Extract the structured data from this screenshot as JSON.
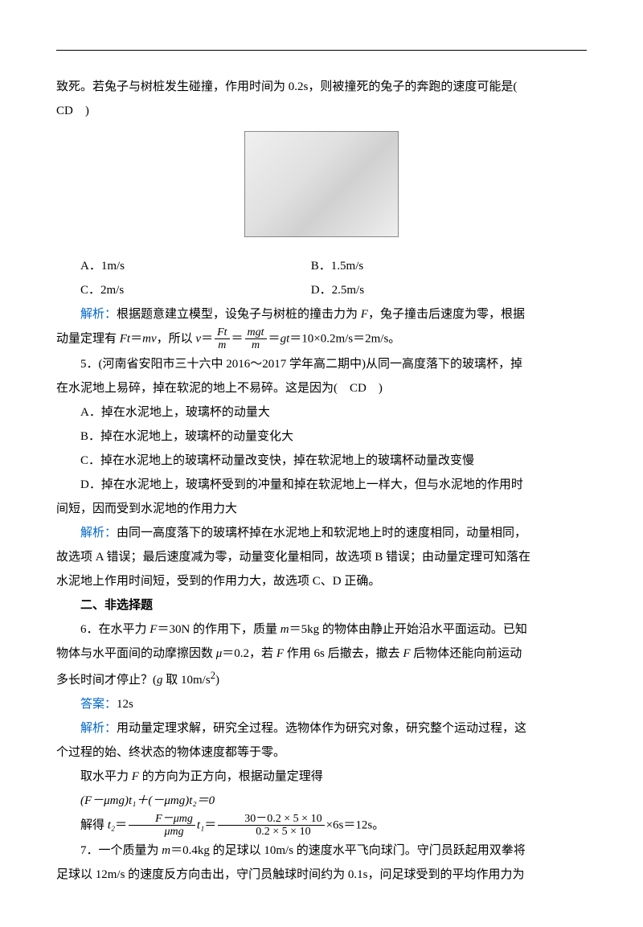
{
  "intro": {
    "line1": "致死。若兔子与树桩发生碰撞，作用时间为 0.2s，则被撞死的兔子的奔跑的速度可能是(",
    "line2": "CD　)"
  },
  "q4_choices": {
    "a": "A．1m/s",
    "b": "B．1.5m/s",
    "c": "C．2m/s",
    "d": "D．2.5m/s"
  },
  "q4_explain": {
    "label": "解析：",
    "part1": "根据题意建立模型，设兔子与树桩的撞击力为 ",
    "var_F": "F",
    "part2": "，兔子撞击后速度为零，根据",
    "cont1": "动量定理有 ",
    "eq1_lhs": "Ft",
    "eq_eq": "＝",
    "eq1_rhs": "mv",
    "cont2": "，所以 ",
    "var_v": "v",
    "frac1_num": "Ft",
    "frac1_den": "m",
    "frac2_num": "mgt",
    "frac2_den": "m",
    "cont3": "＝",
    "var_gt": "gt",
    "cont4": "＝10×0.2m/s＝2m/s。"
  },
  "q5": {
    "stem1": "5．(河南省安阳市三十六中 2016～2017 学年高二期中)从同一高度落下的玻璃杯，掉",
    "stem2": "在水泥地上易碎，掉在软泥的地上不易碎。这是因为(　CD　)",
    "a": "A．掉在水泥地上，玻璃杯的动量大",
    "b": "B．掉在水泥地上，玻璃杯的动量变化大",
    "c": "C．掉在水泥地上的玻璃杯动量改变快，掉在软泥地上的玻璃杯动量改变慢",
    "d1": "D．掉在水泥地上，玻璃杯受到的冲量和掉在软泥地上一样大，但与水泥地的作用时",
    "d2": "间短，因而受到水泥地的作用力大",
    "explain_label": "解析：",
    "explain1": "由同一高度落下的玻璃杯掉在水泥地上和软泥地上时的速度相同，动量相同，",
    "explain2": "故选项 A 错误；最后速度减为零，动量变化量相同，故选项 B 错误；由动量定理可知落在",
    "explain3": "水泥地上作用时间短，受到的作用力大，故选项 C、D 正确。"
  },
  "section": "二、非选择题",
  "q6": {
    "stem1_a": "6．在水平力 ",
    "var_F": "F",
    "stem1_b": "＝30N 的作用下，质量 ",
    "var_m": "m",
    "stem1_c": "＝5kg 的物体由静止开始沿水平面运动。已知",
    "stem2_a": "物体与水平面间的动摩擦因数 ",
    "var_mu": "μ",
    "stem2_b": "＝0.2，若 ",
    "stem2_c": " 作用 6s 后撤去，撤去 ",
    "stem2_d": " 后物体还能向前运动",
    "stem3_a": "多长时间才停止？(",
    "var_g": "g",
    "stem3_b": " 取 10m/s",
    "sup2": "2",
    "stem3_c": ")",
    "ans_label": "答案：",
    "ans": "12s",
    "explain_label": "解析：",
    "explain1": "用动量定理求解，研究全过程。选物体作为研究对象，研究整个运动过程，这",
    "explain2": "个过程的始、终状态的物体速度都等于零。",
    "explain3_a": "取水平力 ",
    "explain3_b": " 的方向为正方向，根据动量定理得",
    "eq_line": "(F－μmg)t₁＋(－μmg)t₂＝0",
    "solve_a": "解得 ",
    "var_t2": "t₂",
    "eq": "＝",
    "frac1_num": "F－μmg",
    "frac1_den": "μmg",
    "var_t1": "t₁",
    "frac2_num": "30－0.2 × 5 × 10",
    "frac2_den": "0.2 × 5 × 10",
    "solve_b": "×6s＝12s。"
  },
  "q7": {
    "stem1_a": "7．一个质量为 ",
    "var_m": "m",
    "stem1_b": "＝0.4kg 的足球以 10m/s 的速度水平飞向球门。守门员跃起用双拳将",
    "stem2": "足球以 12m/s 的速度反方向击出，守门员触球时间约为 0.1s，问足球受到的平均作用力为"
  }
}
